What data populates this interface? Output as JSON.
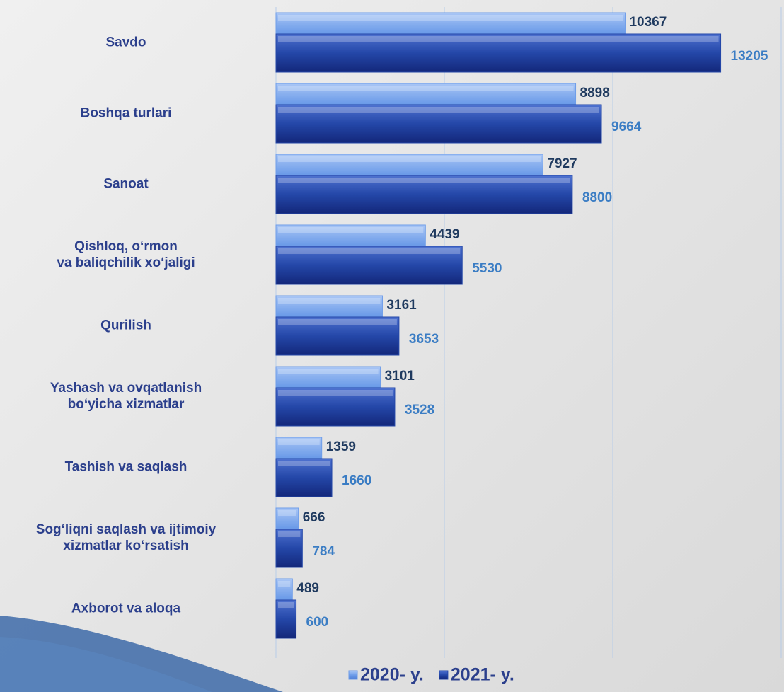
{
  "chart_data": {
    "type": "bar",
    "orientation": "horizontal",
    "categories": [
      "Savdo",
      "Boshqa turlari",
      "Sanoat",
      "Qishloq, o‘rmon\nva baliqchilik xo‘jaligi",
      "Qurilish",
      "Yashash va ovqatlanish\nbo‘yicha xizmatlar",
      "Tashish va saqlash",
      "Sog‘liqni saqlash va ijtimoiy\nxizmatlar ko‘rsatish",
      "Axborot va aloqa"
    ],
    "series": [
      {
        "name": "2020- y.",
        "color": "#6e9de9",
        "values": [
          10367,
          8898,
          7927,
          4439,
          3161,
          3101,
          1359,
          666,
          489
        ]
      },
      {
        "name": "2021- y.",
        "color": "#2447a8",
        "values": [
          13205,
          9664,
          8800,
          5530,
          3653,
          3528,
          1660,
          784,
          600
        ]
      }
    ],
    "xlim": [
      0,
      15000
    ],
    "xticks": [
      0,
      5000,
      10000,
      15000
    ],
    "grid": true,
    "legend": "bottom"
  }
}
